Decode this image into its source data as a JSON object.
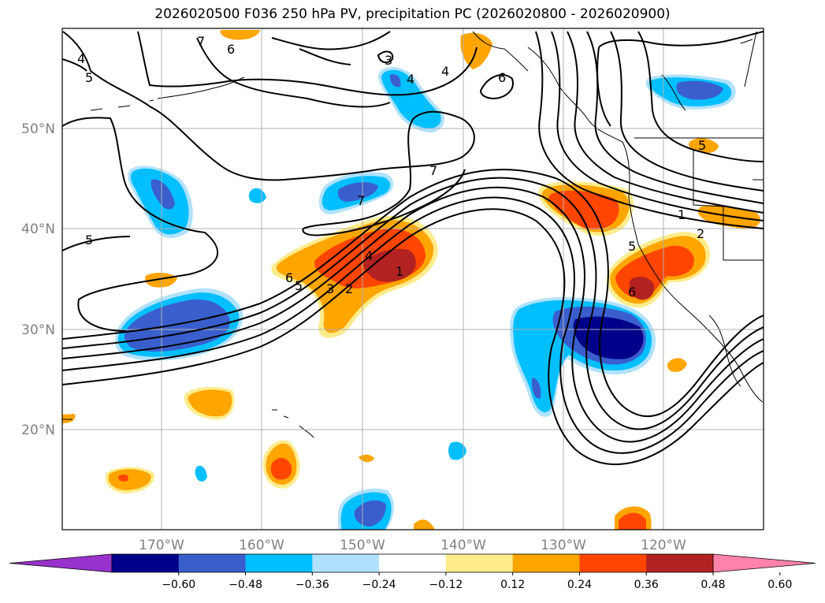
{
  "title": "2026020500 F036 250 hPa PV, precipitation PC (2026020800 - 2026020900)",
  "lat_labels": [
    "50°N",
    "40°N",
    "30°N",
    "20°N"
  ],
  "lon_labels": [
    "170°W",
    "160°W",
    "150°W",
    "140°W",
    "130°W",
    "120°W"
  ],
  "colorbar": {
    "colors": [
      "#9932cc",
      "#00008b",
      "#3a5fcd",
      "#00bfff",
      "#b0e2ff",
      "#ffffff",
      "#ffec8b",
      "#ffa500",
      "#ff4500",
      "#b22222",
      "#ff82ab"
    ],
    "tick_labels": [
      "−0.60",
      "−0.48",
      "−0.36",
      "−0.24",
      "−0.12",
      "0.12",
      "0.24",
      "0.36",
      "0.48",
      "0.60"
    ]
  },
  "contour_labels": [
    "7",
    "6",
    "5",
    "4",
    "5",
    "3",
    "4",
    "6",
    "7",
    "7",
    "5",
    "6",
    "5",
    "3",
    "2",
    "4",
    "1",
    "1",
    "2",
    "5",
    "6",
    "4"
  ]
}
